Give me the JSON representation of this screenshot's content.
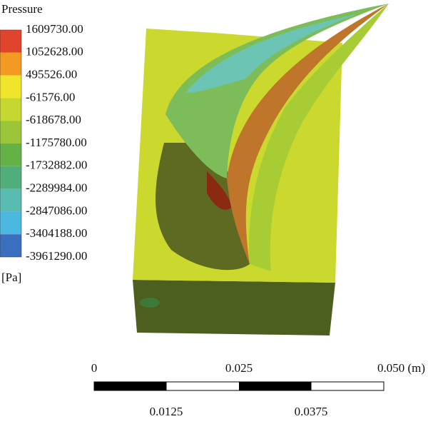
{
  "legend": {
    "title": "Pressure",
    "labels": [
      "1609730.00",
      "1052628.00",
      "495526.00",
      "-61576.00",
      "-618678.00",
      "-1175780.00",
      "-1732882.00",
      "-2289984.00",
      "-2847086.00",
      "-3404188.00",
      "-3961290.00"
    ],
    "colors": [
      "#e0452b",
      "#f39a22",
      "#f1e52b",
      "#c5d82f",
      "#9cc63a",
      "#64b146",
      "#4fae7a",
      "#58bcb2",
      "#4ab8e0",
      "#3a6fc0"
    ],
    "unit": "[Pa]"
  },
  "scale_bar": {
    "top_labels": [
      "0",
      "0.025",
      "0.050 (m)"
    ],
    "bottom_labels": [
      "0.0125",
      "0.0375"
    ]
  }
}
